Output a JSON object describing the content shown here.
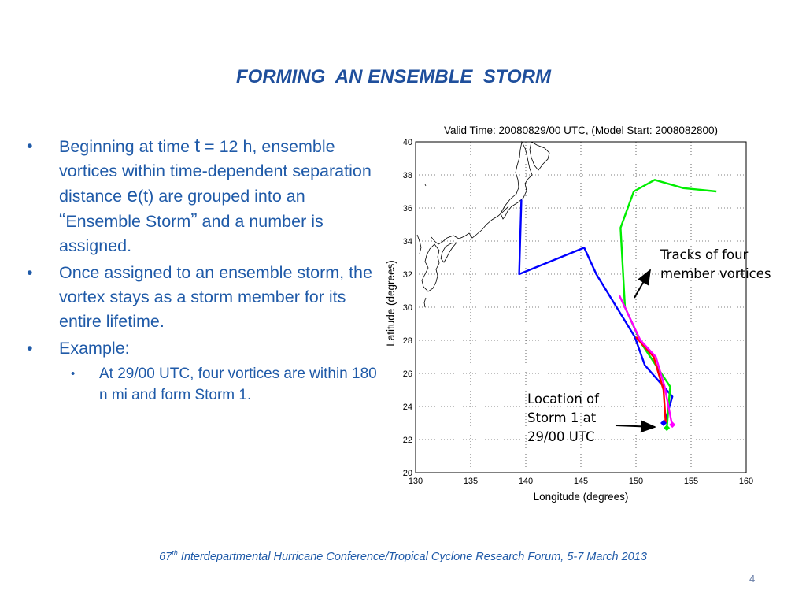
{
  "slide": {
    "title": "FORMING  AN ENSEMBLE  STORM",
    "page_number": "4"
  },
  "bullets": {
    "b1_a": "Beginning at time ",
    "b1_t": "t",
    "b1_b": " = 12 h, ensemble vortices within time-dependent separation distance ",
    "b1_e": "e",
    "b1_c": "(t) are grouped into an ",
    "b1_quote_open": "“",
    "b1_d": "Ensemble Storm",
    "b1_quote_close": "”",
    "b1_e2": " and a number is assigned.",
    "b2": "Once assigned to an ensemble storm, the vortex stays as a storm member for its entire lifetime.",
    "b3": "Example:",
    "sub1": "At 29/00 UTC, four vortices are within 180 n mi and form Storm 1."
  },
  "annotations": {
    "tracks_label_line1": "Tracks of four",
    "tracks_label_line2": "member vortices",
    "location_label_line1": "Location of",
    "location_label_line2": "Storm 1 at",
    "location_label_line3": "29/00 UTC"
  },
  "footer": {
    "number": "67",
    "superscript": "th",
    "text": " Interdepartmental Hurricane Conference/Tropical Cyclone Research Forum, 5-7 March 2013"
  },
  "chart_data": {
    "type": "line",
    "title": "Valid Time: 20080829/00 UTC, (Model Start: 2008082800)",
    "xlabel": "Longitude (degrees)",
    "ylabel": "Latitude (degrees)",
    "xlim": [
      130,
      160
    ],
    "ylim": [
      20,
      40
    ],
    "xticks": [
      130,
      135,
      140,
      145,
      150,
      155,
      160
    ],
    "yticks": [
      20,
      22,
      24,
      26,
      28,
      30,
      32,
      34,
      36,
      38,
      40
    ],
    "grid": true,
    "series": [
      {
        "color": "#0000ff",
        "points": [
          [
            139.6,
            36.5
          ],
          [
            139.4,
            32.0
          ],
          [
            145.3,
            33.6
          ],
          [
            146.4,
            32.0
          ],
          [
            149.9,
            28.2
          ],
          [
            150.8,
            26.5
          ],
          [
            153.3,
            24.6
          ],
          [
            152.6,
            23.0
          ]
        ]
      },
      {
        "color": "#00ee00",
        "points": [
          [
            157.3,
            37.0
          ],
          [
            154.3,
            37.2
          ],
          [
            151.7,
            37.7
          ],
          [
            149.8,
            37.0
          ],
          [
            148.6,
            34.8
          ],
          [
            149.0,
            30.0
          ],
          [
            150.5,
            27.8
          ],
          [
            153.1,
            25.2
          ],
          [
            152.8,
            22.7
          ]
        ]
      },
      {
        "color": "#ff0000",
        "points": [
          [
            150.0,
            28.2
          ],
          [
            151.6,
            27.0
          ],
          [
            152.5,
            25.0
          ],
          [
            152.7,
            23.0
          ]
        ]
      },
      {
        "color": "#ff00ff",
        "points": [
          [
            148.5,
            30.7
          ],
          [
            150.4,
            28.0
          ],
          [
            151.8,
            27.0
          ],
          [
            152.6,
            25.2
          ],
          [
            153.3,
            22.8
          ]
        ]
      }
    ],
    "end_markers": [
      {
        "x": 152.8,
        "y": 22.7,
        "color": "#00ee00"
      },
      {
        "x": 153.3,
        "y": 22.9,
        "color": "#ff00ff"
      },
      {
        "x": 152.5,
        "y": 23.0,
        "color": "#0000ff"
      }
    ]
  }
}
